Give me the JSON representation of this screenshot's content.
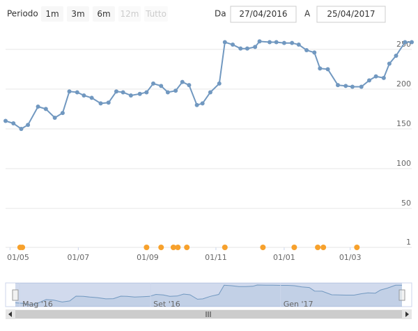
{
  "range_selector": {
    "label": "Periodo",
    "buttons": [
      {
        "text": "1m",
        "enabled": true
      },
      {
        "text": "3m",
        "enabled": true
      },
      {
        "text": "6m",
        "enabled": true
      },
      {
        "text": "12m",
        "enabled": false
      },
      {
        "text": "Tutto",
        "enabled": false
      }
    ],
    "from_label": "Da",
    "to_label": "A"
  },
  "chart_data": {
    "type": "line",
    "xlim": [
      "27/04/2016",
      "25/04/2017"
    ],
    "xticks": [
      "01/05",
      "01/07",
      "01/09",
      "01/11",
      "01/01",
      "01/03"
    ],
    "ylim": [
      1,
      277
    ],
    "yticks": [
      1,
      50,
      100,
      150,
      200,
      250
    ],
    "grid": true,
    "x": [
      "27/04",
      "04/05",
      "11/05",
      "17/05",
      "26/05",
      "02/06",
      "10/06",
      "17/06",
      "23/06",
      "30/06",
      "06/07",
      "13/07",
      "21/07",
      "28/07",
      "04/08",
      "10/08",
      "17/08",
      "25/08",
      "31/08",
      "06/09",
      "13/09",
      "19/09",
      "26/09",
      "02/10",
      "08/10",
      "15/10",
      "20/10",
      "27/10",
      "04/11",
      "09/11",
      "16/11",
      "23/11",
      "29/11",
      "06/12",
      "10/12",
      "19/12",
      "25/12",
      "01/01",
      "08/01",
      "14/01",
      "21/01",
      "28/01",
      "02/02",
      "09/02",
      "18/02",
      "25/02",
      "03/03",
      "11/03",
      "18/03",
      "24/03",
      "31/03",
      "05/04",
      "11/04",
      "19/04",
      "25/04"
    ],
    "series": [
      {
        "color": "#7198c0",
        "values": [
          160,
          157,
          150,
          155,
          178,
          175,
          164,
          170,
          197,
          196,
          192,
          189,
          182,
          183,
          197,
          196,
          192,
          194,
          196,
          207,
          204,
          196,
          198,
          209,
          205,
          180,
          182,
          196,
          207,
          259,
          256,
          251,
          251,
          253,
          260,
          259,
          259,
          258,
          258,
          256,
          249,
          246,
          226,
          225,
          205,
          204,
          203,
          203,
          211,
          216,
          214,
          232,
          242,
          259,
          259
        ]
      },
      {
        "type": "scatter",
        "color": "#f7a12c",
        "x": [
          "10/05",
          "12/05",
          "31/08",
          "13/09",
          "24/09",
          "28/09",
          "06/10",
          "09/11",
          "13/12",
          "10/01",
          "31/01",
          "05/02",
          "07/03"
        ],
        "values": [
          1,
          1,
          1,
          1,
          1,
          1,
          1,
          1,
          1,
          1,
          1,
          1,
          1
        ]
      }
    ],
    "navigator": {
      "xticks": [
        {
          "value": "01/05",
          "label": "Mag '16"
        },
        {
          "value": "01/09",
          "label": "Set '16"
        },
        {
          "value": "01/01",
          "label": "Gen '17"
        }
      ]
    }
  }
}
